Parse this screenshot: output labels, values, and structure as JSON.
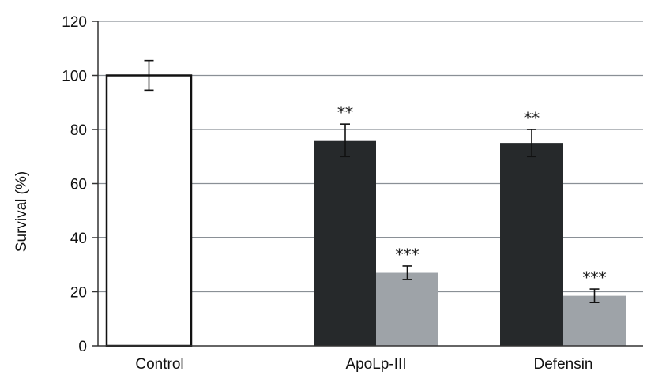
{
  "chart_data": {
    "type": "bar",
    "title": "",
    "xlabel": "",
    "ylabel": "Survival (%)",
    "ylim": [
      0,
      120
    ],
    "yticks": [
      0,
      20,
      40,
      60,
      80,
      100,
      120
    ],
    "grid": true,
    "legend": "none",
    "colors": {
      "control": "#ffffff",
      "dark": "#26292b",
      "light": "#9ea3a8",
      "grid": "#8a9096",
      "axis": "#333333"
    },
    "categories": [
      "Control",
      "ApoLp-III",
      "Defensin"
    ],
    "bars": [
      {
        "category": "Control",
        "value": 100,
        "error": 5.5,
        "fill": "control",
        "sig": ""
      },
      {
        "category": "ApoLp-III",
        "value": 76,
        "error": 6,
        "fill": "dark",
        "sig": "**"
      },
      {
        "category": "ApoLp-III",
        "value": 27,
        "error": 2.5,
        "fill": "light",
        "sig": "***"
      },
      {
        "category": "Defensin",
        "value": 75,
        "error": 5,
        "fill": "dark",
        "sig": "**"
      },
      {
        "category": "Defensin",
        "value": 18.5,
        "error": 2.5,
        "fill": "light",
        "sig": "***"
      }
    ]
  }
}
